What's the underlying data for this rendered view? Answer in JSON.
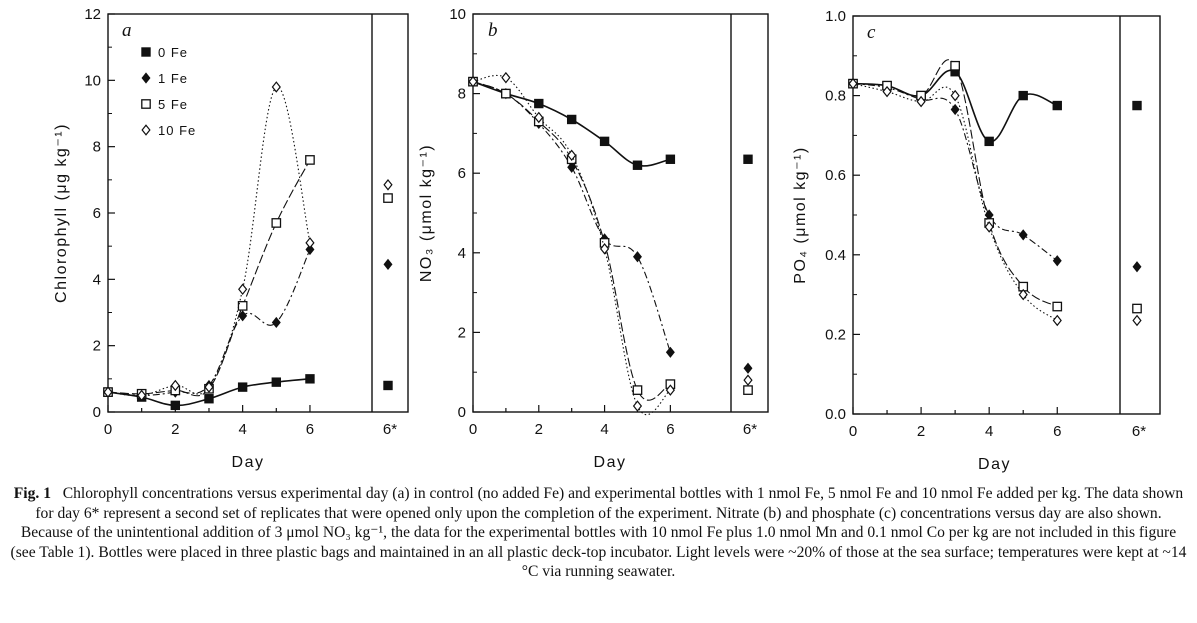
{
  "chart_data": [
    {
      "type": "line",
      "panel_label": "a",
      "xlabel": "Day",
      "ylabel": "Chlorophyll (μg kg⁻¹)",
      "ylim": [
        0,
        12
      ],
      "xlim": [
        0,
        6
      ],
      "xticks": [
        "0",
        "2",
        "4",
        "6"
      ],
      "yticks": [
        "0",
        "2",
        "4",
        "6",
        "8",
        "10",
        "12"
      ],
      "extra_xtick": "6*",
      "legend": {
        "placement": "top-left",
        "entries": [
          "0 Fe",
          "1 Fe",
          "5 Fe",
          "10 Fe"
        ]
      },
      "series": [
        {
          "name": "0 Fe",
          "marker": "square-filled",
          "line": "solid",
          "x": [
            0,
            1,
            2,
            3,
            4,
            5,
            6
          ],
          "y": [
            0.6,
            0.45,
            0.2,
            0.4,
            0.75,
            0.9,
            1.0
          ],
          "day6star": 0.8
        },
        {
          "name": "1 Fe",
          "marker": "diamond-filled",
          "line": "dashdot",
          "x": [
            0,
            1,
            2,
            3,
            4,
            5,
            6
          ],
          "y": [
            0.6,
            0.5,
            0.6,
            0.8,
            2.9,
            2.7,
            4.9
          ],
          "day6star": 4.45
        },
        {
          "name": "5 Fe",
          "marker": "square-open",
          "line": "longdash",
          "x": [
            0,
            1,
            2,
            3,
            4,
            5,
            6
          ],
          "y": [
            0.6,
            0.55,
            0.65,
            0.7,
            3.2,
            5.7,
            7.6
          ],
          "day6star": 6.45
        },
        {
          "name": "10 Fe",
          "marker": "diamond-open",
          "line": "dotted",
          "x": [
            0,
            1,
            2,
            3,
            4,
            5,
            6
          ],
          "y": [
            0.6,
            0.5,
            0.8,
            0.75,
            3.7,
            9.8,
            5.1
          ],
          "day6star": 6.85
        }
      ]
    },
    {
      "type": "line",
      "panel_label": "b",
      "xlabel": "Day",
      "ylabel": "NO₃ (μmol kg⁻¹)",
      "ylim": [
        0,
        10
      ],
      "xlim": [
        0,
        6
      ],
      "xticks": [
        "0",
        "2",
        "4",
        "6"
      ],
      "yticks": [
        "0",
        "2",
        "4",
        "6",
        "8",
        "10"
      ],
      "extra_xtick": "6*",
      "series": [
        {
          "name": "0 Fe",
          "marker": "square-filled",
          "line": "solid",
          "x": [
            0,
            1,
            2,
            3,
            4,
            5,
            6
          ],
          "y": [
            8.3,
            8.0,
            7.75,
            7.35,
            6.8,
            6.2,
            6.35
          ],
          "day6star": 6.35
        },
        {
          "name": "1 Fe",
          "marker": "diamond-filled",
          "line": "dashdot",
          "x": [
            0,
            1,
            2,
            3,
            4,
            5,
            6
          ],
          "y": [
            8.3,
            8.0,
            7.25,
            6.15,
            4.35,
            3.9,
            1.5
          ],
          "day6star": 1.1
        },
        {
          "name": "5 Fe",
          "marker": "square-open",
          "line": "longdash",
          "x": [
            0,
            1,
            2,
            3,
            4,
            5,
            6
          ],
          "y": [
            8.3,
            8.0,
            7.3,
            6.35,
            4.25,
            0.55,
            0.7
          ],
          "day6star": 0.55
        },
        {
          "name": "10 Fe",
          "marker": "diamond-open",
          "line": "dotted",
          "x": [
            0,
            1,
            2,
            3,
            4,
            5,
            6
          ],
          "y": [
            8.3,
            8.4,
            7.4,
            6.45,
            4.1,
            0.15,
            0.55
          ],
          "day6star": 0.8
        }
      ]
    },
    {
      "type": "line",
      "panel_label": "c",
      "xlabel": "Day",
      "ylabel": "PO₄ (μmol kg⁻¹)",
      "ylim": [
        0,
        1.0
      ],
      "xlim": [
        0,
        6
      ],
      "xticks": [
        "0",
        "2",
        "4",
        "6"
      ],
      "yticks": [
        "0.0",
        "0.2",
        "0.4",
        "0.6",
        "0.8",
        "1.0"
      ],
      "extra_xtick": "6*",
      "series": [
        {
          "name": "0 Fe",
          "marker": "square-filled",
          "line": "solid",
          "x": [
            0,
            1,
            2,
            3,
            4,
            5,
            6
          ],
          "y": [
            0.83,
            0.825,
            0.8,
            0.86,
            0.685,
            0.8,
            0.775
          ],
          "day6star": 0.775
        },
        {
          "name": "1 Fe",
          "marker": "diamond-filled",
          "line": "dashdot",
          "x": [
            0,
            1,
            2,
            3,
            4,
            5,
            6
          ],
          "y": [
            0.83,
            0.82,
            0.79,
            0.765,
            0.5,
            0.45,
            0.385
          ],
          "day6star": 0.37
        },
        {
          "name": "5 Fe",
          "marker": "square-open",
          "line": "longdash",
          "x": [
            0,
            1,
            2,
            3,
            4,
            5,
            6
          ],
          "y": [
            0.83,
            0.825,
            0.8,
            0.875,
            0.48,
            0.32,
            0.27
          ],
          "day6star": 0.265
        },
        {
          "name": "10 Fe",
          "marker": "diamond-open",
          "line": "dotted",
          "x": [
            0,
            1,
            2,
            3,
            4,
            5,
            6
          ],
          "y": [
            0.83,
            0.81,
            0.785,
            0.8,
            0.47,
            0.3,
            0.235
          ],
          "day6star": 0.235
        }
      ]
    }
  ],
  "caption": {
    "label": "Fig. 1",
    "text": "Chlorophyll concentrations versus experimental day (a) in control (no added Fe) and experimental bottles with 1 nmol Fe, 5 nmol Fe and 10 nmol Fe added per kg. The data shown for day 6* represent a second set of replicates that were opened only upon the completion of the experiment. Nitrate (b) and phosphate (c) concentrations versus day are also shown. Because of the unintentional addition of 3 μmol NO₃ kg⁻¹, the data for the experimental bottles with 10 nmol Fe plus 1.0 nmol Mn and 0.1 nmol Co per kg are not included in this figure (see Table 1). Bottles were placed in three plastic bags and maintained in an all plastic deck-top incubator. Light levels were ~20% of those at the sea surface; temperatures were kept at ~14 °C via running seawater."
  }
}
